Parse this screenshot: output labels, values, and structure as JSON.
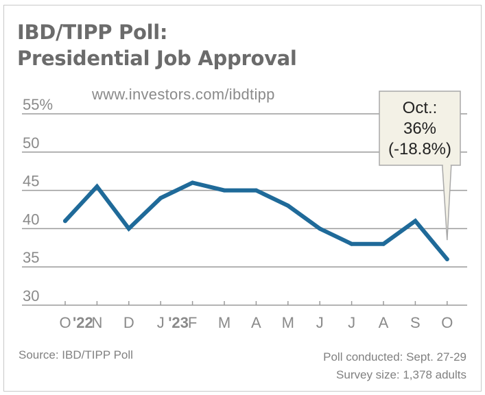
{
  "header": {
    "title_line1": "IBD/TIPP Poll:",
    "title_line2": "Presidential Job Approval",
    "url": "www.investors.com/ibdtipp"
  },
  "footer": {
    "source": "Source: IBD/TIPP Poll",
    "poll_conducted": "Poll conducted: Sept. 27-29",
    "survey_size": "Survey size: 1,378 adults"
  },
  "colors": {
    "line": "#1f6a99",
    "grid": "#9a9a9a",
    "callout_fill": "#f3f1e6",
    "callout_border": "#a8a8a8",
    "text_muted": "#8a8a8a"
  },
  "chart_data": {
    "type": "line",
    "title": "IBD/TIPP Poll: Presidential Job Approval",
    "xlabel": "",
    "ylabel": "",
    "x": [
      "O",
      "N",
      "D",
      "J",
      "F",
      "M",
      "A",
      "M",
      "J",
      "J",
      "A",
      "S",
      "O"
    ],
    "x_tick_labels": [
      {
        "text": "O",
        "year": "'22"
      },
      {
        "text": "N"
      },
      {
        "text": "D"
      },
      {
        "text": "J",
        "year": "'23"
      },
      {
        "text": "F"
      },
      {
        "text": "M"
      },
      {
        "text": "A"
      },
      {
        "text": "M"
      },
      {
        "text": "J"
      },
      {
        "text": "J"
      },
      {
        "text": "A"
      },
      {
        "text": "S"
      },
      {
        "text": "O"
      }
    ],
    "series": [
      {
        "name": "Presidential Job Approval (%)",
        "values": [
          41,
          45.5,
          40,
          44,
          46,
          45,
          45,
          43,
          40,
          38,
          38,
          41,
          36
        ]
      }
    ],
    "ylim": [
      30,
      55
    ],
    "y_ticks": [
      30,
      35,
      40,
      45,
      50,
      55
    ],
    "y_tick_labels": [
      "30",
      "35",
      "40",
      "45",
      "50",
      "55%"
    ],
    "grid": true,
    "annotation": {
      "point_index": 12,
      "lines": [
        "Oct.:",
        "36%",
        "(-18.8%)"
      ]
    }
  }
}
